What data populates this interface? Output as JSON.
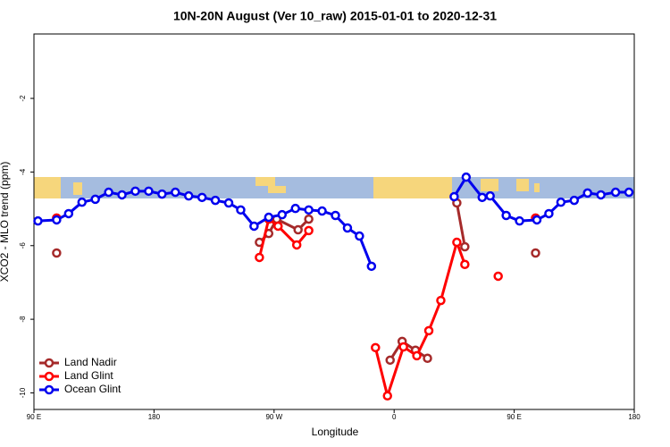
{
  "chart_data": {
    "type": "line",
    "title": "10N-20N August (Ver 10_raw)   2015-01-01 to 2020-12-31",
    "x_label": "Longitude",
    "y_label": "XCO2 - MLO trend (ppm)",
    "xlim": [
      90,
      540
    ],
    "xticks": [
      {
        "value": 90,
        "label": "90 E"
      },
      180,
      {
        "value": 270,
        "label": "90 W"
      },
      {
        "value": 360,
        "label": "0"
      },
      {
        "value": 450,
        "label": "90 E"
      },
      {
        "value": 540,
        "label": "180"
      }
    ],
    "ylim": [
      -10.45,
      -0.25
    ],
    "yticks": [
      -2,
      -4,
      -6,
      -8,
      -10
    ],
    "legend": "lower left",
    "series": [
      {
        "name": "Land Nadir",
        "color": "#a52a2a",
        "x": [
          107,
          null,
          259,
          266,
          272,
          288,
          296,
          null,
          357,
          366,
          376,
          385,
          null,
          407,
          413,
          null,
          466
        ],
        "values": [
          -6.2,
          null,
          -5.91,
          -5.67,
          -5.28,
          -5.57,
          -5.28,
          null,
          -9.11,
          -8.6,
          -8.84,
          -9.06,
          null,
          -4.84,
          -6.03,
          null,
          -6.2
        ]
      },
      {
        "name": "Land Glint",
        "color": "#ff0000",
        "x": [
          107,
          null,
          259,
          266,
          273,
          287,
          296,
          null,
          346,
          355,
          367,
          377,
          386,
          395,
          407,
          413,
          null,
          438,
          null,
          466
        ],
        "values": [
          -5.25,
          null,
          -6.32,
          -5.28,
          -5.47,
          -5.98,
          -5.59,
          null,
          -8.77,
          -10.08,
          -8.75,
          -8.99,
          -8.31,
          -7.49,
          -5.91,
          -6.51,
          null,
          -6.83,
          null,
          -5.25
        ]
      },
      {
        "name": "Ocean Glint",
        "color": "#0000ee",
        "x": [
          93,
          107,
          116,
          126,
          136,
          146,
          156,
          166,
          176,
          186,
          196,
          206,
          216,
          226,
          236,
          245,
          255,
          266,
          276,
          286,
          296,
          306,
          316,
          325,
          334,
          343,
          null,
          405,
          414,
          426,
          432,
          444,
          454,
          467,
          476,
          485,
          495,
          505,
          515,
          526,
          536
        ],
        "values": [
          -5.33,
          -5.3,
          -5.13,
          -4.82,
          -4.74,
          -4.55,
          -4.62,
          -4.52,
          -4.52,
          -4.6,
          -4.55,
          -4.65,
          -4.69,
          -4.77,
          -4.84,
          -5.03,
          -5.47,
          -5.23,
          -5.16,
          -4.99,
          -5.03,
          -5.06,
          -5.18,
          -5.52,
          -5.74,
          -6.56,
          null,
          -4.67,
          -4.14,
          -4.69,
          -4.65,
          -5.18,
          -5.33,
          -5.3,
          -5.13,
          -4.82,
          -4.77,
          -4.57,
          -4.62,
          -4.55,
          -4.55
        ]
      }
    ]
  }
}
